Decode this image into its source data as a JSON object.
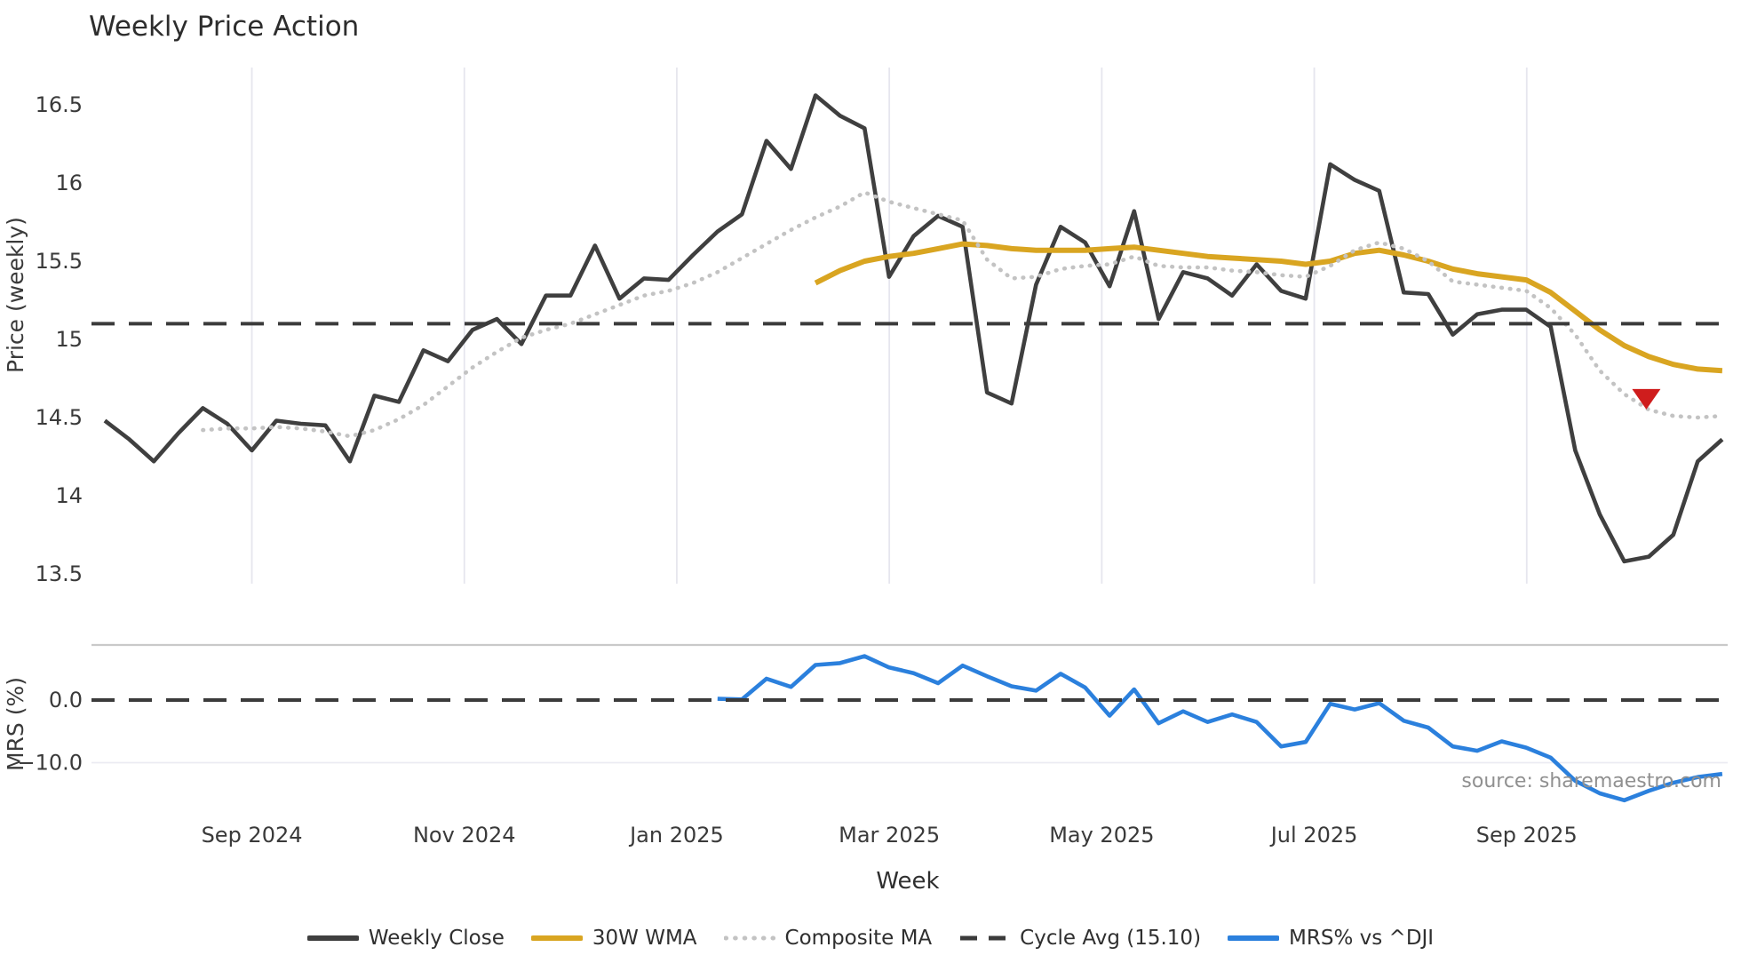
{
  "title": "Weekly Price Action",
  "source_note": "source: sharemaestro.com",
  "colors": {
    "close": "#3f3f3f",
    "wma": "#d9a521",
    "composite": "#c3c3c3",
    "cycle": "#3b3b3b",
    "mrs": "#2b80dd",
    "marker": "#cf1d1d",
    "grid": "#e6e6ee",
    "separator": "#c9c9c9",
    "tick_text": "#3a3a3a"
  },
  "chart_data": [
    {
      "type": "line",
      "panel": "price",
      "title": "Weekly Price Action",
      "xlabel": "Week",
      "ylabel": "Price (weekly)",
      "ylim": [
        13.3,
        16.75
      ],
      "grid": "vertical-only",
      "legend_position": "bottom-center",
      "yticks": [
        {
          "value": 16.5,
          "label": "16.5"
        },
        {
          "value": 16.0,
          "label": "16"
        },
        {
          "value": 15.5,
          "label": "15.5"
        },
        {
          "value": 15.0,
          "label": "15"
        },
        {
          "value": 14.5,
          "label": "14.5"
        },
        {
          "value": 14.0,
          "label": "14"
        },
        {
          "value": 13.5,
          "label": "13.5"
        }
      ],
      "x_ticks": [
        {
          "week": 6.0,
          "label": "Sep 2024"
        },
        {
          "week": 14.67,
          "label": "Nov 2024"
        },
        {
          "week": 23.34,
          "label": "Jan 2025"
        },
        {
          "week": 32.01,
          "label": "Mar 2025"
        },
        {
          "week": 40.68,
          "label": "May 2025"
        },
        {
          "week": 49.35,
          "label": "Jul 2025"
        },
        {
          "week": 58.02,
          "label": "Sep 2025"
        }
      ],
      "series": [
        {
          "name": "Weekly Close",
          "style": "solid",
          "color": "#3f3f3f",
          "start_week": 0,
          "values": [
            14.48,
            14.36,
            14.22,
            14.4,
            14.56,
            14.46,
            14.29,
            14.48,
            14.46,
            14.45,
            14.22,
            14.64,
            14.6,
            14.93,
            14.86,
            15.06,
            15.13,
            14.97,
            15.28,
            15.28,
            15.6,
            15.26,
            15.39,
            15.38,
            15.54,
            15.69,
            15.8,
            16.27,
            16.09,
            16.56,
            16.43,
            16.35,
            15.4,
            15.66,
            15.79,
            15.72,
            14.66,
            14.59,
            15.35,
            15.72,
            15.62,
            15.34,
            15.82,
            15.13,
            15.43,
            15.39,
            15.28,
            15.48,
            15.31,
            15.26,
            16.12,
            16.02,
            15.95,
            15.3,
            15.29,
            15.03,
            15.16,
            15.19,
            15.19,
            15.08,
            14.29,
            13.88,
            13.58,
            13.61,
            13.75,
            14.22,
            14.36
          ]
        },
        {
          "name": "30W WMA",
          "style": "solid",
          "color": "#d9a521",
          "start_week": 29,
          "values": [
            15.36,
            15.44,
            15.5,
            15.53,
            15.55,
            15.58,
            15.61,
            15.6,
            15.58,
            15.57,
            15.57,
            15.57,
            15.58,
            15.59,
            15.57,
            15.55,
            15.53,
            15.52,
            15.51,
            15.5,
            15.48,
            15.5,
            15.55,
            15.57,
            15.54,
            15.5,
            15.45,
            15.42,
            15.4,
            15.38,
            15.3,
            15.18,
            15.06,
            14.96,
            14.89,
            14.84,
            14.81,
            14.8
          ]
        },
        {
          "name": "Composite MA",
          "style": "dotted",
          "color": "#c3c3c3",
          "start_week": 4,
          "values": [
            14.42,
            14.43,
            14.43,
            14.44,
            14.43,
            14.41,
            14.38,
            14.42,
            14.49,
            14.58,
            14.7,
            14.82,
            14.92,
            15.01,
            15.06,
            15.1,
            15.16,
            15.22,
            15.28,
            15.31,
            15.36,
            15.43,
            15.52,
            15.61,
            15.7,
            15.78,
            15.85,
            15.94,
            15.88,
            15.84,
            15.8,
            15.76,
            15.51,
            15.39,
            15.4,
            15.45,
            15.47,
            15.48,
            15.53,
            15.47,
            15.46,
            15.46,
            15.44,
            15.43,
            15.41,
            15.4,
            15.47,
            15.57,
            15.62,
            15.58,
            15.5,
            15.37,
            15.35,
            15.33,
            15.31,
            15.2,
            15.03,
            14.8,
            14.65,
            14.55,
            14.51,
            14.5,
            14.51
          ]
        },
        {
          "name": "Cycle Avg (15.10)",
          "style": "dashed",
          "color": "#3b3b3b",
          "constant_value": 15.1
        }
      ],
      "marker": {
        "shape": "triangle-down",
        "color": "#cf1d1d",
        "week": 62.9,
        "price": 14.62
      }
    },
    {
      "type": "line",
      "panel": "mrs",
      "ylabel": "MRS (%)",
      "ylim": [
        -16.6,
        8.8
      ],
      "yticks": [
        {
          "value": 0.0,
          "label": "0.0"
        },
        {
          "value": -10.0,
          "label": "−10.0"
        }
      ],
      "series": [
        {
          "name": "MRS% vs ^DJI",
          "style": "solid",
          "color": "#2b80dd",
          "start_week": 25,
          "values": [
            0.2,
            0.1,
            3.4,
            2.1,
            5.6,
            5.9,
            7.0,
            5.2,
            4.3,
            2.7,
            5.5,
            3.8,
            2.2,
            1.5,
            4.2,
            2.0,
            -2.5,
            1.7,
            -3.7,
            -1.8,
            -3.5,
            -2.3,
            -3.5,
            -7.4,
            -6.7,
            -0.6,
            -1.5,
            -0.5,
            -3.3,
            -4.4,
            -7.4,
            -8.1,
            -6.6,
            -7.6,
            -9.2,
            -12.9,
            -14.9,
            -16.0,
            -14.5,
            -13.2,
            -12.3,
            -11.8
          ]
        },
        {
          "name": "zero-line",
          "style": "dashed",
          "color": "#3b3b3b",
          "constant_value": 0.0
        }
      ]
    }
  ],
  "legend": [
    {
      "label": "Weekly Close",
      "color": "#3f3f3f",
      "style": "solid"
    },
    {
      "label": "30W WMA",
      "color": "#d9a521",
      "style": "solid"
    },
    {
      "label": "Composite MA",
      "color": "#c3c3c3",
      "style": "dotted"
    },
    {
      "label": "Cycle Avg (15.10)",
      "color": "#3b3b3b",
      "style": "dashed"
    },
    {
      "label": "MRS% vs ^DJI",
      "color": "#2b80dd",
      "style": "solid"
    }
  ]
}
